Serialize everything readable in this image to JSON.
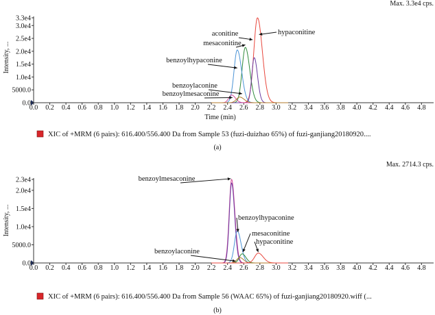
{
  "chart_data": [
    {
      "type": "line",
      "title": "",
      "max_label": "Max. 3.3e4 cps.",
      "xlabel": "Time (min)",
      "ylabel": "Intensity, ...",
      "xlim": [
        0.0,
        4.95
      ],
      "ylim": [
        0,
        33000
      ],
      "x_ticks": [
        "0.0",
        "0.2",
        "0.4",
        "0.6",
        "0.8",
        "1.0",
        "1.2",
        "1.4",
        "1.6",
        "1.8",
        "2.0",
        "2.2",
        "2.4",
        "2.6",
        "2.8",
        "3.0",
        "3.2",
        "3.4",
        "3.6",
        "3.8",
        "4.0",
        "4.2",
        "4.4",
        "4.6",
        "4.8"
      ],
      "y_ticks": [
        {
          "value": 0,
          "label": "0.0"
        },
        {
          "value": 5000,
          "label": "5000.0"
        },
        {
          "value": 10000,
          "label": "1.0e4"
        },
        {
          "value": 15000,
          "label": "1.5e4"
        },
        {
          "value": 20000,
          "label": "2.0e4"
        },
        {
          "value": 25000,
          "label": "2.5e4"
        },
        {
          "value": 30000,
          "label": "3.0e4"
        },
        {
          "value": 33000,
          "label": "3.3e4"
        }
      ],
      "series": [
        {
          "color": "#e8463c",
          "peaks": [
            {
              "rt": 2.77,
              "height": 33000,
              "width": 0.045
            }
          ]
        },
        {
          "color": "#2f8a3a",
          "peaks": [
            {
              "rt": 2.62,
              "height": 21500,
              "width": 0.04
            }
          ]
        },
        {
          "color": "#4a93d6",
          "peaks": [
            {
              "rt": 2.52,
              "height": 20500,
              "width": 0.04
            }
          ]
        },
        {
          "color": "#6a3aa0",
          "peaks": [
            {
              "rt": 2.73,
              "height": 17500,
              "width": 0.03
            }
          ]
        },
        {
          "color": "#d24a9a",
          "peaks": [
            {
              "rt": 2.45,
              "height": 3000,
              "width": 0.035
            }
          ]
        },
        {
          "color": "#b07a2a",
          "peaks": [
            {
              "rt": 2.55,
              "height": 2200,
              "width": 0.04
            }
          ]
        }
      ],
      "annotations": [
        {
          "text": "aconitine",
          "rt": 2.71,
          "value": 24500
        },
        {
          "text": "hypaconitine",
          "rt": 2.79,
          "value": 26500
        },
        {
          "text": "mesaconitine",
          "rt": 2.62,
          "value": 22500
        },
        {
          "text": "benzoylhypaconine",
          "rt": 2.52,
          "value": 13500
        },
        {
          "text": "benzoylaconine",
          "rt": 2.58,
          "value": 3500
        },
        {
          "text": "benzoylmesaconine",
          "rt": 2.46,
          "value": 2000
        }
      ],
      "legend": "XIC of +MRM (6 pairs): 616.400/556.400 Da from Sample 53 (fuzi-duizhao 65%) of fuzi-ganjiang20180920....",
      "legend_color": "#d8262a",
      "panel_label": "(a)"
    },
    {
      "type": "line",
      "title": "",
      "max_label": "Max. 2714.3 cps.",
      "xlabel": "Time (min)",
      "ylabel": "Intensity, ...",
      "xlim": [
        0.0,
        4.95
      ],
      "ylim": [
        0,
        23000
      ],
      "x_ticks": [
        "0.0",
        "0.2",
        "0.4",
        "0.6",
        "0.8",
        "1.0",
        "1.2",
        "1.4",
        "1.6",
        "1.8",
        "2.0",
        "2.2",
        "2.4",
        "2.6",
        "2.8",
        "3.0",
        "3.2",
        "3.4",
        "3.6",
        "3.8",
        "4.0",
        "4.2",
        "4.4",
        "4.6",
        "4.8"
      ],
      "y_ticks": [
        {
          "value": 0,
          "label": "0.0"
        },
        {
          "value": 5000,
          "label": "5000.0"
        },
        {
          "value": 10000,
          "label": "1.0e4"
        },
        {
          "value": 15000,
          "label": "1.5e4"
        },
        {
          "value": 20000,
          "label": "2.0e4"
        },
        {
          "value": 23000,
          "label": "2.3e4"
        }
      ],
      "series": [
        {
          "color": "#d24a9a",
          "peaks": [
            {
              "rt": 2.45,
              "height": 23000,
              "width": 0.03
            }
          ]
        },
        {
          "color": "#6a3aa0",
          "peaks": [
            {
              "rt": 2.45,
              "height": 22000,
              "width": 0.028
            }
          ]
        },
        {
          "color": "#4a93d6",
          "peaks": [
            {
              "rt": 2.52,
              "height": 8800,
              "width": 0.035
            }
          ]
        },
        {
          "color": "#2f8a3a",
          "peaks": [
            {
              "rt": 2.58,
              "height": 2500,
              "width": 0.035
            }
          ]
        },
        {
          "color": "#b07a2a",
          "peaks": [
            {
              "rt": 2.55,
              "height": 1500,
              "width": 0.035
            }
          ]
        },
        {
          "color": "#e8463c",
          "peaks": [
            {
              "rt": 2.78,
              "height": 2714,
              "width": 0.045
            }
          ]
        }
      ],
      "annotations": [
        {
          "text": "benzoylmesaconine",
          "rt": 2.44,
          "value": 23200
        },
        {
          "text": "benzoylhypaconine",
          "rt": 2.53,
          "value": 8500
        },
        {
          "text": "mesaconitine",
          "rt": 2.59,
          "value": 3000
        },
        {
          "text": "hypaconitine",
          "rt": 2.78,
          "value": 3000
        },
        {
          "text": "benzoylaconine",
          "rt": 2.5,
          "value": 500
        }
      ],
      "legend": "XIC of +MRM (6 pairs): 616.400/556.400 Da from Sample 56 (WAAC 65%) of fuzi-ganjiang20180920.wiff (...",
      "legend_color": "#d8262a",
      "panel_label": "(b)"
    }
  ]
}
